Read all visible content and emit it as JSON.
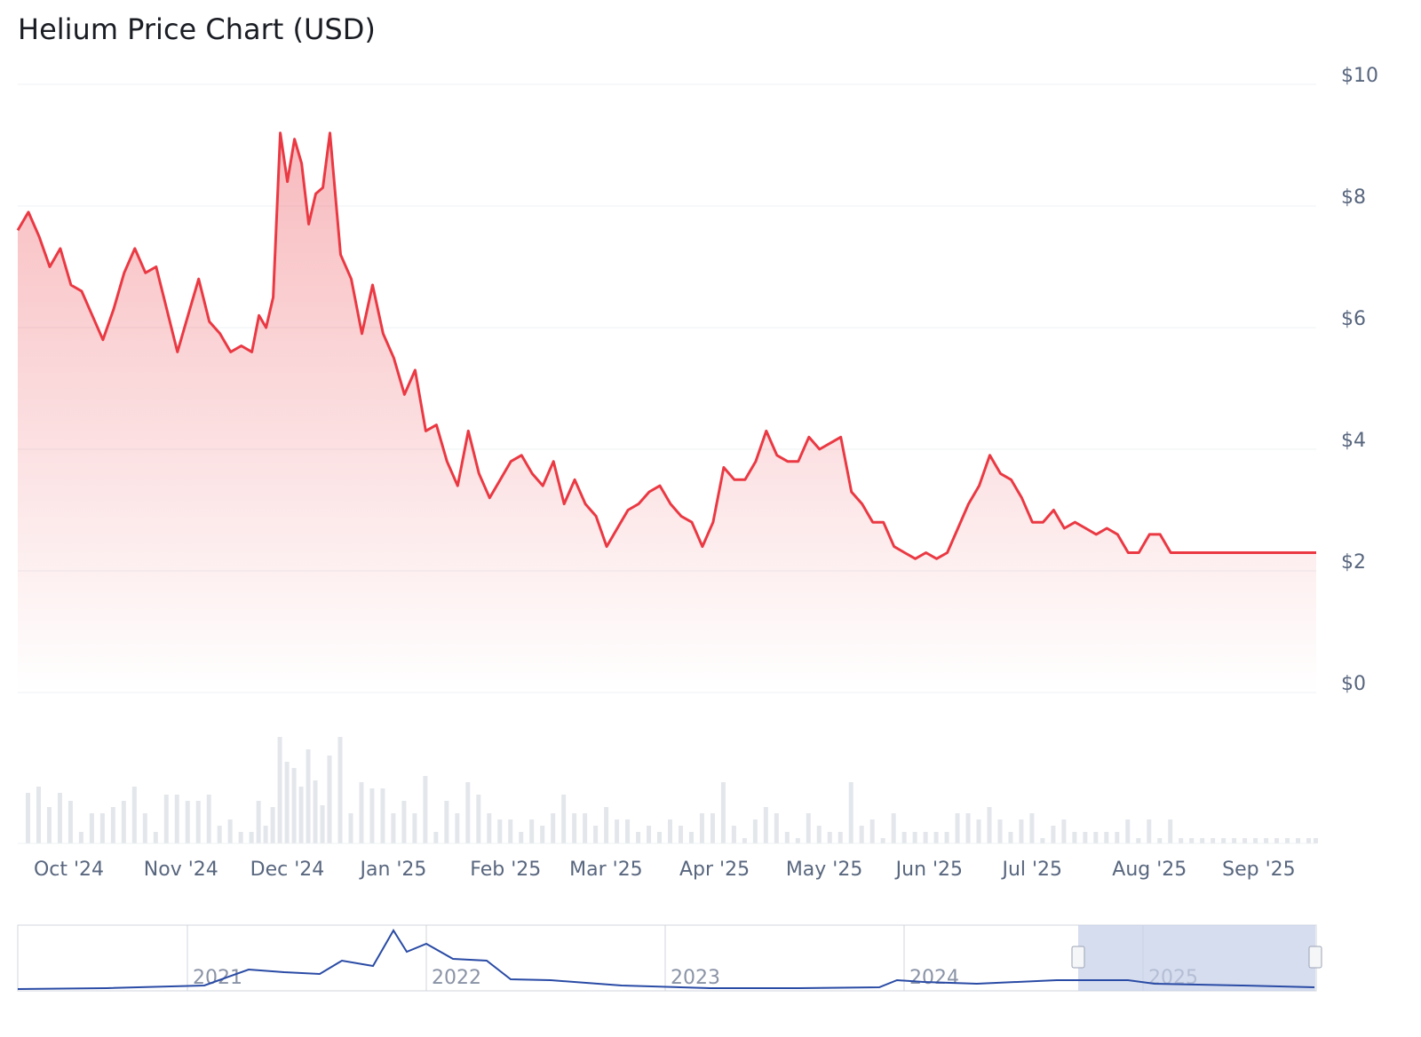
{
  "chart_data": {
    "type": "line",
    "title": "Helium Price Chart (USD)",
    "y_tick_labels": [
      "$0",
      "$2",
      "$4",
      "$6",
      "$8",
      "$10"
    ],
    "y_ticks": [
      0,
      2,
      4,
      6,
      8,
      10
    ],
    "ylim": [
      0,
      10
    ],
    "x_tick_labels": [
      "Oct '24",
      "Nov '24",
      "Dec '24",
      "Jan '25",
      "Feb '25",
      "Mar '25",
      "Apr '25",
      "May '25",
      "Jun '25",
      "Jul '25",
      "Aug '25",
      "Sep '25"
    ],
    "x_start": "2024-09-26",
    "x_end": "2025-09-27",
    "series": [
      {
        "color": "#ea3943",
        "x": [
          "2024-09-26",
          "2024-09-29",
          "2024-10-02",
          "2024-10-05",
          "2024-10-08",
          "2024-10-11",
          "2024-10-14",
          "2024-10-17",
          "2024-10-20",
          "2024-10-23",
          "2024-10-26",
          "2024-10-29",
          "2024-11-01",
          "2024-11-04",
          "2024-11-07",
          "2024-11-10",
          "2024-11-13",
          "2024-11-16",
          "2024-11-19",
          "2024-11-22",
          "2024-11-25",
          "2024-11-28",
          "2024-12-01",
          "2024-12-03",
          "2024-12-05",
          "2024-12-07",
          "2024-12-09",
          "2024-12-11",
          "2024-12-13",
          "2024-12-15",
          "2024-12-17",
          "2024-12-19",
          "2024-12-21",
          "2024-12-23",
          "2024-12-26",
          "2024-12-29",
          "2025-01-01",
          "2025-01-04",
          "2025-01-07",
          "2025-01-10",
          "2025-01-13",
          "2025-01-16",
          "2025-01-19",
          "2025-01-22",
          "2025-01-25",
          "2025-01-28",
          "2025-01-31",
          "2025-02-03",
          "2025-02-06",
          "2025-02-09",
          "2025-02-12",
          "2025-02-15",
          "2025-02-18",
          "2025-02-21",
          "2025-02-24",
          "2025-02-27",
          "2025-03-02",
          "2025-03-05",
          "2025-03-08",
          "2025-03-11",
          "2025-03-14",
          "2025-03-17",
          "2025-03-20",
          "2025-03-23",
          "2025-03-26",
          "2025-03-29",
          "2025-04-01",
          "2025-04-04",
          "2025-04-07",
          "2025-04-10",
          "2025-04-13",
          "2025-04-16",
          "2025-04-19",
          "2025-04-22",
          "2025-04-25",
          "2025-04-28",
          "2025-05-01",
          "2025-05-04",
          "2025-05-07",
          "2025-05-10",
          "2025-05-13",
          "2025-05-16",
          "2025-05-19",
          "2025-05-22",
          "2025-05-25",
          "2025-05-28",
          "2025-05-31",
          "2025-06-03",
          "2025-06-06",
          "2025-06-09",
          "2025-06-12",
          "2025-06-15",
          "2025-06-18",
          "2025-06-21",
          "2025-06-24",
          "2025-06-27",
          "2025-06-30",
          "2025-07-03",
          "2025-07-06",
          "2025-07-09",
          "2025-07-12",
          "2025-07-15",
          "2025-07-18",
          "2025-07-21",
          "2025-07-24",
          "2025-07-27",
          "2025-07-30",
          "2025-08-02",
          "2025-08-05",
          "2025-08-08",
          "2025-08-11",
          "2025-08-14",
          "2025-08-17",
          "2025-08-20",
          "2025-08-23",
          "2025-08-26",
          "2025-08-29",
          "2025-09-01",
          "2025-09-04",
          "2025-09-07",
          "2025-09-10",
          "2025-09-13",
          "2025-09-16",
          "2025-09-19",
          "2025-09-22",
          "2025-09-25",
          "2025-09-27"
        ],
        "y": [
          7.6,
          7.9,
          7.5,
          7.0,
          7.3,
          6.7,
          6.6,
          6.2,
          5.8,
          6.3,
          6.9,
          7.3,
          6.9,
          7.0,
          6.3,
          5.6,
          6.2,
          6.8,
          6.1,
          5.9,
          5.6,
          5.7,
          5.6,
          6.2,
          6.0,
          6.5,
          9.2,
          8.4,
          9.1,
          8.7,
          7.7,
          8.2,
          8.3,
          9.2,
          7.2,
          6.8,
          5.9,
          6.7,
          5.9,
          5.5,
          4.9,
          5.3,
          4.3,
          4.4,
          3.8,
          3.4,
          4.3,
          3.6,
          3.2,
          3.5,
          3.8,
          3.9,
          3.6,
          3.4,
          3.8,
          3.1,
          3.5,
          3.1,
          2.9,
          2.4,
          2.7,
          3.0,
          3.1,
          3.3,
          3.4,
          3.1,
          2.9,
          2.8,
          2.4,
          2.8,
          3.7,
          3.5,
          3.5,
          3.8,
          4.3,
          3.9,
          3.8,
          3.8,
          4.2,
          4.0,
          4.1,
          4.2,
          3.3,
          3.1,
          2.8,
          2.8,
          2.4,
          2.3,
          2.2,
          2.3,
          2.2,
          2.3,
          2.7,
          3.1,
          3.4,
          3.9,
          3.6,
          3.5,
          3.2,
          2.8,
          2.8,
          3.0,
          2.7,
          2.8,
          2.7,
          2.6,
          2.7,
          2.6,
          2.3,
          2.3,
          2.6,
          2.6,
          2.3,
          2.3,
          2.3,
          2.3,
          2.3,
          2.3,
          2.3,
          2.3,
          2.3,
          2.3,
          2.3,
          2.3,
          2.3,
          2.3,
          2.3
        ]
      }
    ],
    "volume_baseline": [
      1600
    ],
    "nav_tick_labels": [
      "2021",
      "2022",
      "2023",
      "2024",
      "2025"
    ]
  }
}
